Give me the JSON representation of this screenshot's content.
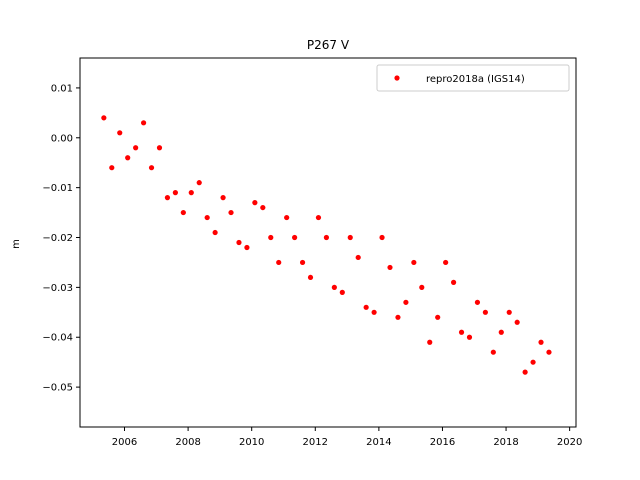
{
  "chart_data": {
    "type": "scatter",
    "title": "P267 V",
    "xlabel": "",
    "ylabel": "m",
    "xlim": [
      2004.6,
      2020.2
    ],
    "ylim": [
      -0.058,
      0.016
    ],
    "x_ticks": [
      2006,
      2008,
      2010,
      2012,
      2014,
      2016,
      2018,
      2020
    ],
    "x_tick_labels": [
      "2006",
      "2008",
      "2010",
      "2012",
      "2014",
      "2016",
      "2018",
      "2020"
    ],
    "y_ticks": [
      0.01,
      0.0,
      -0.01,
      -0.02,
      -0.03,
      -0.04,
      -0.05
    ],
    "y_tick_labels": [
      "0.01",
      "0.00",
      "−0.01",
      "−0.02",
      "−0.03",
      "−0.04",
      "−0.05"
    ],
    "legend_position": "top-right",
    "grid": false,
    "series": [
      {
        "name": "repro2018a (IGS14)",
        "color": "#ff0000",
        "marker": "point",
        "x": [
          2005.35,
          2005.6,
          2005.85,
          2006.1,
          2006.35,
          2006.6,
          2006.85,
          2007.1,
          2007.35,
          2007.6,
          2007.85,
          2008.1,
          2008.35,
          2008.6,
          2008.85,
          2009.1,
          2009.35,
          2009.6,
          2009.85,
          2010.1,
          2010.35,
          2010.6,
          2010.85,
          2011.1,
          2011.35,
          2011.6,
          2011.85,
          2012.1,
          2012.35,
          2012.6,
          2012.85,
          2013.1,
          2013.35,
          2013.6,
          2013.85,
          2014.1,
          2014.35,
          2014.6,
          2014.85,
          2015.1,
          2015.35,
          2015.6,
          2015.85,
          2016.1,
          2016.35,
          2016.6,
          2016.85,
          2017.1,
          2017.35,
          2017.6,
          2017.85,
          2018.1,
          2018.35,
          2018.6,
          2018.85,
          2019.1,
          2019.35
        ],
        "y": [
          0.004,
          -0.006,
          0.001,
          -0.004,
          -0.002,
          0.003,
          -0.006,
          -0.002,
          -0.012,
          -0.011,
          -0.015,
          -0.011,
          -0.009,
          -0.016,
          -0.019,
          -0.012,
          -0.015,
          -0.021,
          -0.022,
          -0.013,
          -0.014,
          -0.02,
          -0.025,
          -0.016,
          -0.02,
          -0.025,
          -0.028,
          -0.016,
          -0.02,
          -0.03,
          -0.031,
          -0.02,
          -0.024,
          -0.034,
          -0.035,
          -0.02,
          -0.026,
          -0.036,
          -0.033,
          -0.025,
          -0.03,
          -0.041,
          -0.036,
          -0.025,
          -0.029,
          -0.039,
          -0.04,
          -0.033,
          -0.035,
          -0.043,
          -0.039,
          -0.035,
          -0.037,
          -0.047,
          -0.045,
          -0.041,
          -0.043
        ]
      }
    ]
  }
}
